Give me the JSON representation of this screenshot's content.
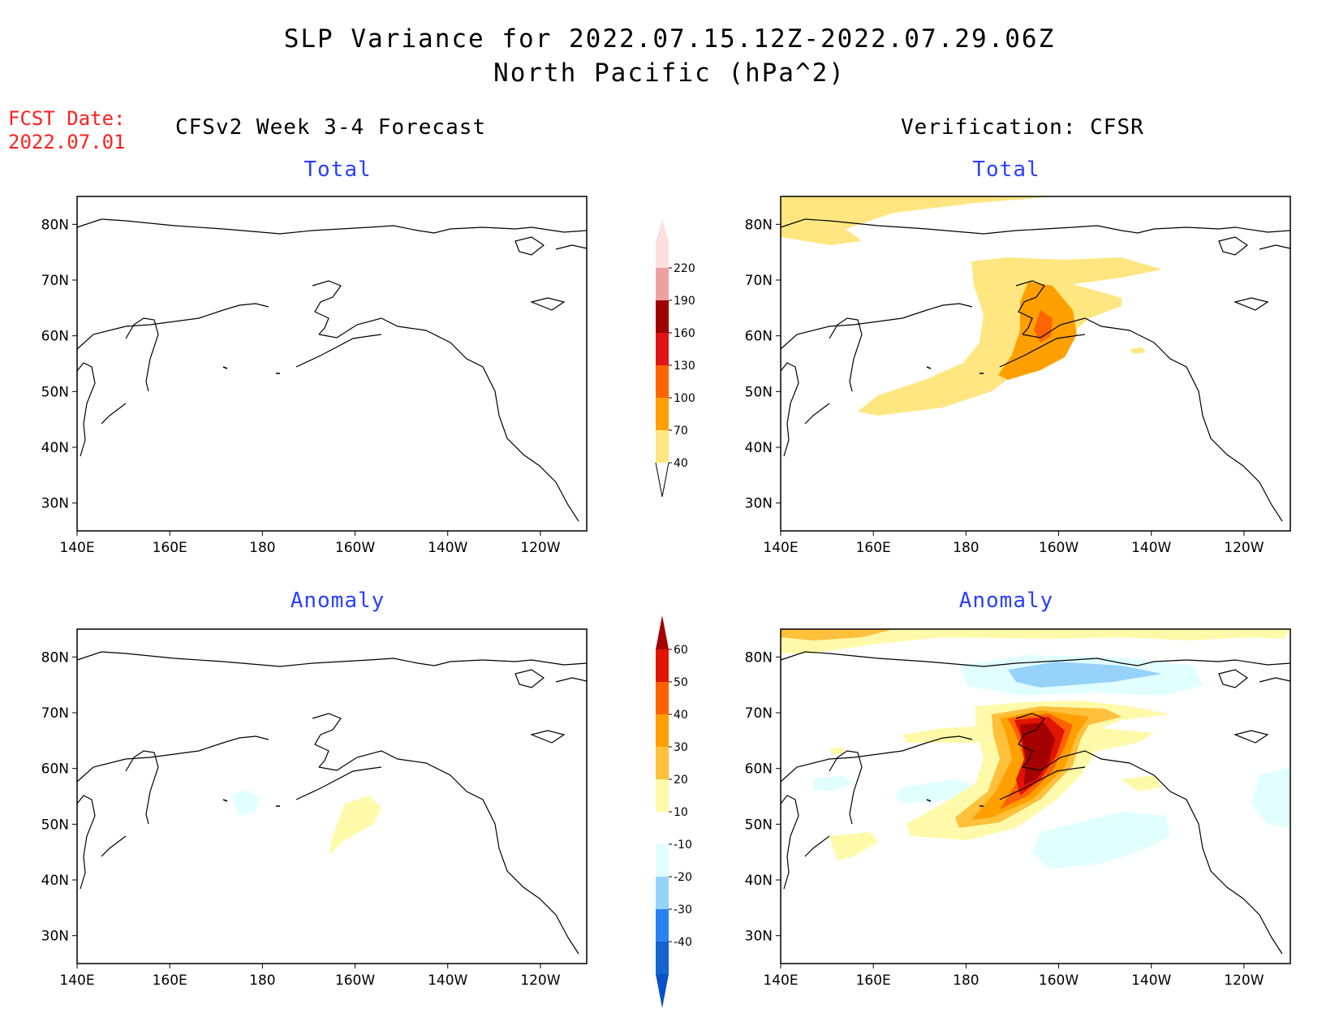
{
  "figure": {
    "title_line1": "SLP Variance for 2022.07.15.12Z-2022.07.29.06Z",
    "title_line2": "North Pacific (hPa^2)",
    "fcst_label": "FCST Date:",
    "fcst_date": "2022.07.01",
    "left_header": "CFSv2 Week 3-4 Forecast",
    "right_header": "Verification: CFSR"
  },
  "panels": {
    "total_label": "Total",
    "anomaly_label": "Anomaly"
  },
  "axes": {
    "lat_ticks": [
      "80N",
      "70N",
      "60N",
      "50N",
      "40N",
      "30N"
    ],
    "lat_values": [
      80,
      70,
      60,
      50,
      40,
      30
    ],
    "lon_ticks": [
      "140E",
      "160E",
      "180",
      "160W",
      "140W",
      "120W"
    ],
    "lon_values": [
      140,
      160,
      180,
      200,
      220,
      240
    ],
    "lon_range": [
      140,
      250
    ],
    "lat_range": [
      25,
      85
    ]
  },
  "colorbars": {
    "total": {
      "labels": [
        "40",
        "70",
        "100",
        "130",
        "160",
        "190",
        "220"
      ],
      "colors": [
        "#ffe680",
        "#ffa000",
        "#ff6400",
        "#e01414",
        "#a00000",
        "#f0a0a0",
        "#fce0e0"
      ]
    },
    "anomaly": {
      "labels": [
        "-40",
        "-30",
        "-20",
        "-10",
        "10",
        "20",
        "30",
        "40",
        "50",
        "60"
      ],
      "colors_low": [
        "#1464d2",
        "#2882f0",
        "#96d2fa",
        "#e1ffff"
      ],
      "colors_high": [
        "#ffffff",
        "#fffaaa",
        "#ffc03c",
        "#ffa000",
        "#ff6000",
        "#e11400",
        "#a50000"
      ]
    }
  }
}
